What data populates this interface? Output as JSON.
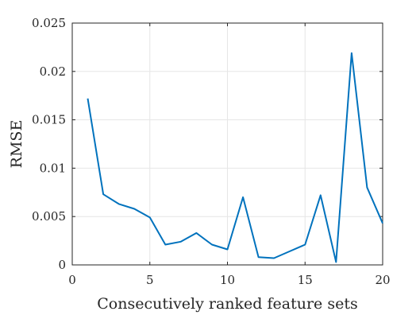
{
  "chart_data": {
    "type": "line",
    "xlabel": "Consecutively ranked feature sets",
    "ylabel": "RMSE",
    "xlim": [
      0,
      20
    ],
    "ylim": [
      0,
      0.025
    ],
    "xticks": [
      0,
      5,
      10,
      15,
      20
    ],
    "yticks": [
      0,
      0.005,
      0.01,
      0.015,
      0.02,
      0.025
    ],
    "xtick_labels": [
      "0",
      "5",
      "10",
      "15",
      "20"
    ],
    "ytick_labels": [
      "0",
      "0.005",
      "0.01",
      "0.015",
      "0.02",
      "0.025"
    ],
    "grid": true,
    "series": [
      {
        "color": "#0072bd",
        "x": [
          1,
          2,
          3,
          4,
          5,
          6,
          7,
          8,
          9,
          10,
          11,
          12,
          13,
          14,
          15,
          16,
          17,
          18,
          19,
          20
        ],
        "y": [
          0.0172,
          0.0073,
          0.0063,
          0.0058,
          0.0049,
          0.0021,
          0.0024,
          0.0033,
          0.0021,
          0.0016,
          0.007,
          0.0008,
          0.0007,
          0.0014,
          0.0021,
          0.0072,
          0.0003,
          0.0219,
          0.008,
          0.0043
        ]
      }
    ]
  }
}
